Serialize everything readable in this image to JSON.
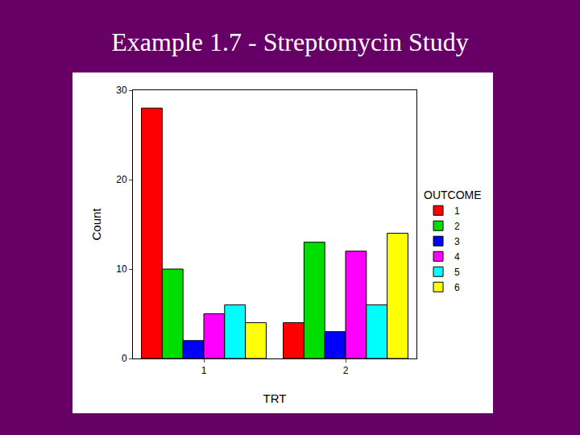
{
  "chart_data": {
    "type": "bar",
    "title": "Example 1.7 - Streptomycin Study",
    "x_label": "TRT",
    "y_label": "Count",
    "legend_title": "OUTCOME",
    "categories": [
      "1",
      "2"
    ],
    "series": [
      {
        "name": "1",
        "color": "#ff0000",
        "values": [
          28,
          4
        ]
      },
      {
        "name": "2",
        "color": "#00dd00",
        "values": [
          10,
          13
        ]
      },
      {
        "name": "3",
        "color": "#0000ff",
        "values": [
          2,
          3
        ]
      },
      {
        "name": "4",
        "color": "#ff00ff",
        "values": [
          5,
          12
        ]
      },
      {
        "name": "5",
        "color": "#00ffff",
        "values": [
          6,
          6
        ]
      },
      {
        "name": "6",
        "color": "#ffff00",
        "values": [
          4,
          14
        ]
      }
    ],
    "ylim": [
      0,
      30
    ],
    "yticks": [
      0,
      10,
      20,
      30
    ],
    "grid": false,
    "legend": "right"
  }
}
